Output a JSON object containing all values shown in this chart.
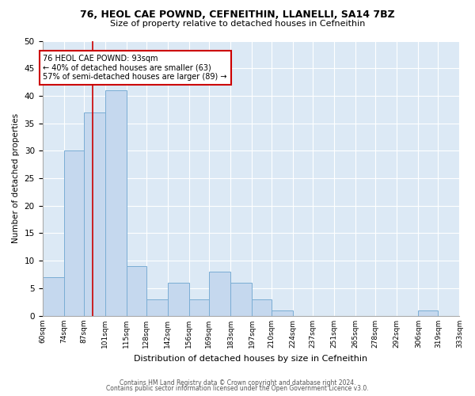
{
  "title": "76, HEOL CAE POWND, CEFNEITHIN, LLANELLI, SA14 7BZ",
  "subtitle": "Size of property relative to detached houses in Cefneithin",
  "xlabel": "Distribution of detached houses by size in Cefneithin",
  "ylabel": "Number of detached properties",
  "bin_labels": [
    "60sqm",
    "74sqm",
    "87sqm",
    "101sqm",
    "115sqm",
    "128sqm",
    "142sqm",
    "156sqm",
    "169sqm",
    "183sqm",
    "197sqm",
    "210sqm",
    "224sqm",
    "237sqm",
    "251sqm",
    "265sqm",
    "278sqm",
    "292sqm",
    "306sqm",
    "319sqm",
    "333sqm"
  ],
  "bin_edges": [
    60,
    74,
    87,
    101,
    115,
    128,
    142,
    156,
    169,
    183,
    197,
    210,
    224,
    237,
    251,
    265,
    278,
    292,
    306,
    319,
    333
  ],
  "bar_heights": [
    7,
    30,
    37,
    41,
    9,
    3,
    6,
    3,
    8,
    6,
    3,
    1,
    0,
    0,
    0,
    0,
    0,
    0,
    1,
    0
  ],
  "bar_color": "#c5d8ee",
  "bar_edge_color": "#7aadd4",
  "property_size": 93,
  "red_line_color": "#cc0000",
  "annotation_line1": "76 HEOL CAE POWND: 93sqm",
  "annotation_line2": "← 40% of detached houses are smaller (63)",
  "annotation_line3": "57% of semi-detached houses are larger (89) →",
  "annotation_box_color": "#ffffff",
  "annotation_box_edge_color": "#cc0000",
  "ylim": [
    0,
    50
  ],
  "yticks": [
    0,
    5,
    10,
    15,
    20,
    25,
    30,
    35,
    40,
    45,
    50
  ],
  "footer_line1": "Contains HM Land Registry data © Crown copyright and database right 2024.",
  "footer_line2": "Contains public sector information licensed under the Open Government Licence v3.0.",
  "fig_bg_color": "#ffffff",
  "plot_bg_color": "#dce9f5"
}
